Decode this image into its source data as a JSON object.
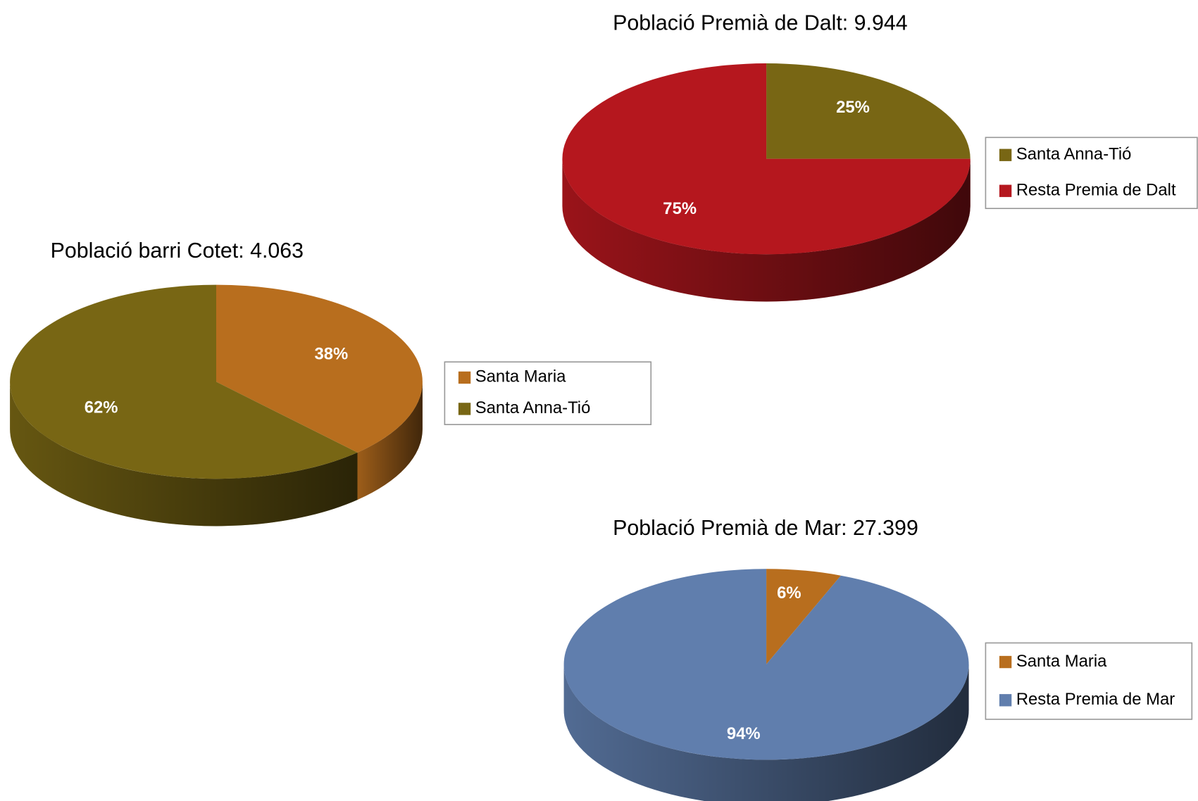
{
  "chart_data": [
    {
      "type": "pie",
      "title": "Població Premià de Dalt: 9.944",
      "categories": [
        "Santa Anna-Tió",
        "Resta Premia de Dalt"
      ],
      "values": [
        25,
        75
      ],
      "value_labels": [
        "25%",
        "75%"
      ],
      "colors": [
        "#786614",
        "#b5171e"
      ]
    },
    {
      "type": "pie",
      "title": "Població barri Cotet: 4.063",
      "categories": [
        "Santa Maria",
        "Santa Anna-Tió"
      ],
      "values": [
        38,
        62
      ],
      "value_labels": [
        "38%",
        "62%"
      ],
      "colors": [
        "#b86e1e",
        "#786614"
      ]
    },
    {
      "type": "pie",
      "title": "Població Premià de Mar: 27.399",
      "categories": [
        "Santa Maria",
        "Resta Premia de Mar"
      ],
      "values": [
        6,
        94
      ],
      "value_labels": [
        "6%",
        "94%"
      ],
      "colors": [
        "#b86e1e",
        "#607ead"
      ]
    }
  ]
}
